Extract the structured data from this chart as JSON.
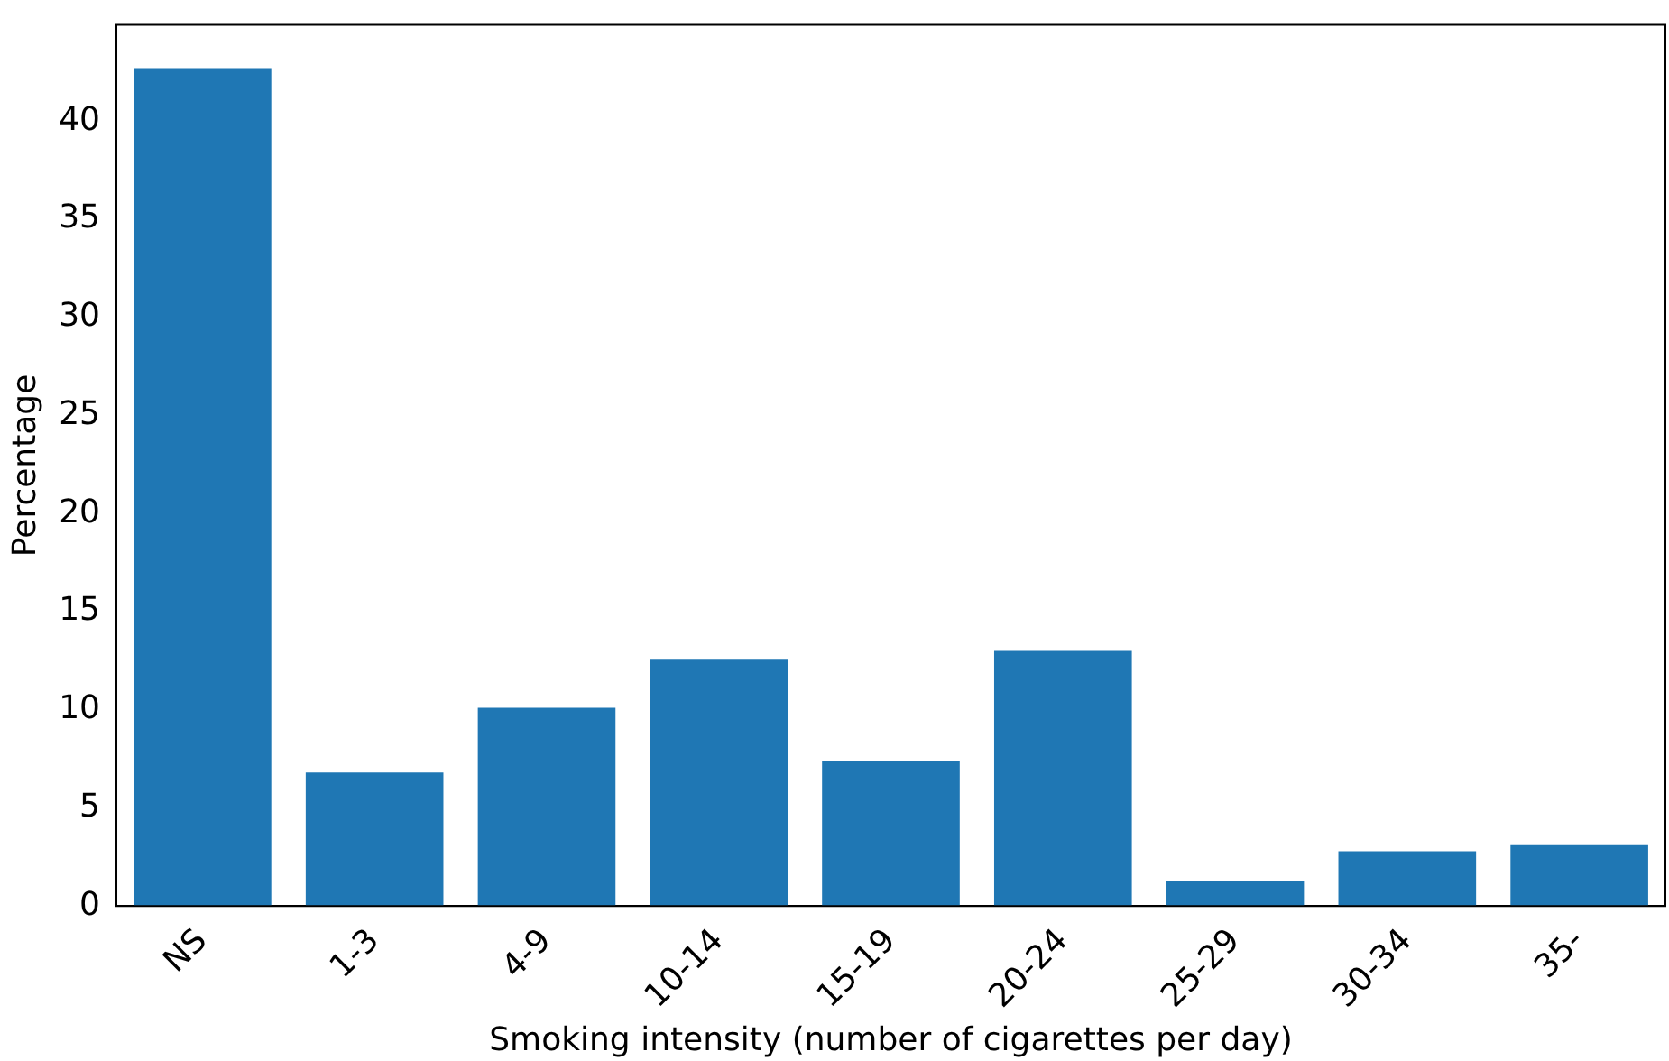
{
  "chart_data": {
    "type": "bar",
    "xlabel": "Smoking intensity (number of cigarettes per day)",
    "ylabel": "Percentage",
    "categories": [
      "NS",
      "1-3",
      "4-9",
      "10-14",
      "15-19",
      "20-24",
      "25-29",
      "30-34",
      "35-"
    ],
    "values": [
      42.7,
      6.8,
      10.1,
      12.6,
      7.4,
      13.0,
      1.3,
      2.8,
      3.1
    ],
    "color": "#1f77b4",
    "ylim": [
      0,
      44.9
    ],
    "yticks": [
      0,
      5,
      10,
      15,
      20,
      25,
      30,
      35,
      40
    ],
    "grid": false,
    "legend": false
  }
}
